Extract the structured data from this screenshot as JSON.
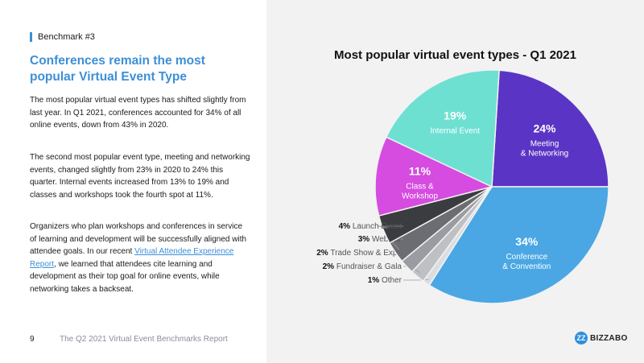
{
  "header": {
    "benchmark_tag": "Benchmark #3"
  },
  "headline": "Conferences remain the most popular Virtual Event Type",
  "paragraphs": {
    "p1": "The most popular virtual event types has shifted slightly from last year. In Q1 2021, conferences accounted for 34% of all online events, down from 43% in 2020.",
    "p2": "The second most popular event type, meeting and networking events, changed slightly from 23% in 2020 to 24% this quarter. Internal events increased from 13% to 19% and classes and workshops took the fourth spot at 11%.",
    "p3_before": "Organizers who plan workshops and conferences in service of learning and development will be successfully aligned with attendee goals. In our recent ",
    "p3_link": "Virtual Attendee Experience Report",
    "p3_after": ", we learned that attendees cite learning and development as their top goal for online events, while networking takes a backseat."
  },
  "footer": {
    "page_number": "9",
    "report_title": "The Q2 2021 Virtual Event Benchmarks Report"
  },
  "brand": {
    "logo_text": "BIZZABO",
    "logo_mark": "ZZ",
    "accent": "#3d8fd6"
  },
  "chart_data": {
    "type": "pie",
    "title": "Most popular virtual event types - Q1 2021",
    "slices": [
      {
        "pct": "24%",
        "label": "Meeting & Networking",
        "label_lines": [
          "Meeting",
          "& Networking"
        ],
        "value": 24,
        "color": "#5a34c4"
      },
      {
        "pct": "34%",
        "label": "Conference & Convention",
        "label_lines": [
          "Conference",
          "& Convention"
        ],
        "value": 34,
        "color": "#4aa7e4"
      },
      {
        "pct": "1%",
        "label": "Other",
        "value": 1,
        "color": "#dcdde0"
      },
      {
        "pct": "2%",
        "label": "Fundraiser & Gala",
        "value": 2,
        "color": "#bfc0c4"
      },
      {
        "pct": "2%",
        "label": "Trade Show & Expo",
        "value": 2,
        "color": "#9a9ca1"
      },
      {
        "pct": "3%",
        "label": "Webinar",
        "value": 3,
        "color": "#6b6d72"
      },
      {
        "pct": "4%",
        "label": "Launch Event",
        "value": 4,
        "color": "#3b3c40"
      },
      {
        "pct": "11%",
        "label": "Class & Workshop",
        "label_lines": [
          "Class &",
          "Workshop"
        ],
        "value": 11,
        "color": "#d64be0"
      },
      {
        "pct": "19%",
        "label": "Internal Event",
        "label_lines": [
          "Internal Event"
        ],
        "value": 19,
        "color": "#6ee0d2"
      }
    ]
  }
}
